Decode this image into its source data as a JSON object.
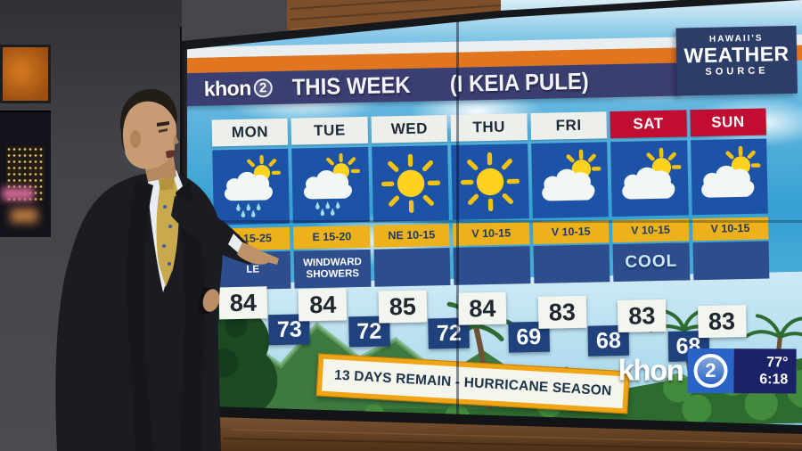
{
  "station": {
    "logo_text": "khon",
    "logo_number": "2"
  },
  "header": {
    "title": "THIS WEEK",
    "subtitle": "(I KEIA PULE)"
  },
  "source_badge": {
    "line1": "HAWAII'S",
    "line2": "WEATHER",
    "line3": "SOURCE"
  },
  "forecast": {
    "days": [
      {
        "label": "MON",
        "label_style": "white",
        "icon": "showers",
        "wind": "E 15-25",
        "note": "LE",
        "note_style": "",
        "hi": "84",
        "lo": "73"
      },
      {
        "label": "TUE",
        "label_style": "white",
        "icon": "showers",
        "wind": "E 15-20",
        "note": "WINDWARD SHOWERS",
        "note_style": "",
        "hi": "84",
        "lo": "72"
      },
      {
        "label": "WED",
        "label_style": "white",
        "icon": "sunny",
        "wind": "NE 10-15",
        "note": "",
        "note_style": "",
        "hi": "85",
        "lo": "72"
      },
      {
        "label": "THU",
        "label_style": "white",
        "icon": "sunny",
        "wind": "V 10-15",
        "note": "",
        "note_style": "",
        "hi": "84",
        "lo": "69"
      },
      {
        "label": "FRI",
        "label_style": "white",
        "icon": "partly",
        "wind": "V 10-15",
        "note": "",
        "note_style": "",
        "hi": "83",
        "lo": "68"
      },
      {
        "label": "SAT",
        "label_style": "red",
        "icon": "partly",
        "wind": "V 10-15",
        "note": "COOL",
        "note_style": "cool",
        "hi": "83",
        "lo": "68"
      },
      {
        "label": "SUN",
        "label_style": "red",
        "icon": "partly",
        "wind": "V 10-15",
        "note": "",
        "note_style": "",
        "hi": "83",
        "lo": ""
      }
    ]
  },
  "banner": {
    "text": "13 DAYS REMAIN - HURRICANE SEASON"
  },
  "bug": {
    "temp": "77°",
    "time": "6:18"
  },
  "colors": {
    "accent_orange": "#E2761F",
    "header_navy": "#3B3E70",
    "weekend_red": "#C00D31",
    "panel_blue": "#1D53A6",
    "wind_gold": "#EDB11C",
    "note_navy": "#2D4D8C",
    "low_navy": "#1F417C",
    "banner_gold": "#F0A517"
  }
}
